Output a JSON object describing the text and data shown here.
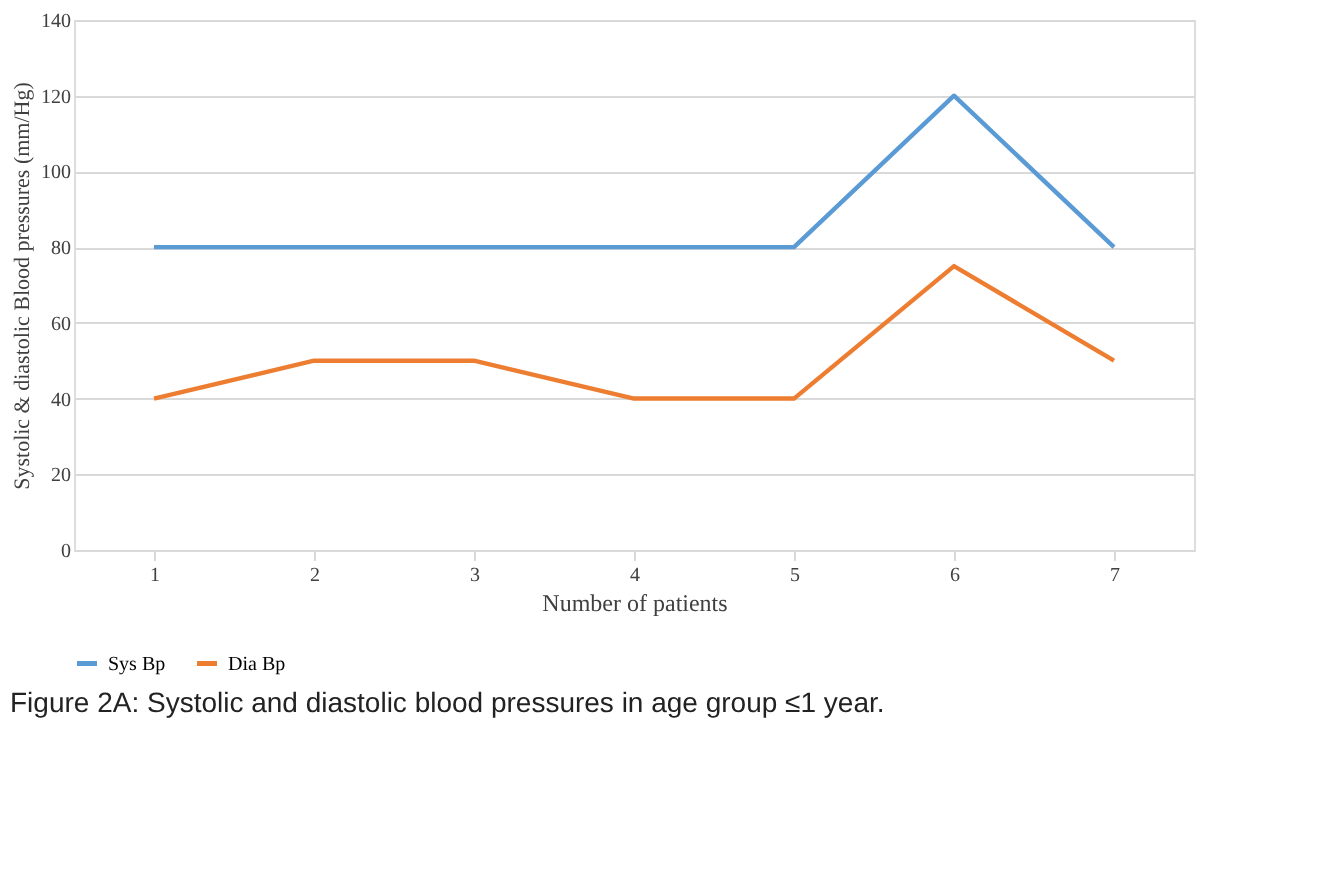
{
  "chart_data": {
    "type": "line",
    "xlabel": "Number of patients",
    "ylabel": "Systolic & diastolic Blood pressures (mm/Hg)",
    "categories": [
      "1",
      "2",
      "3",
      "4",
      "5",
      "6",
      "7"
    ],
    "series": [
      {
        "name": "Sys Bp",
        "color": "#5b9bd5",
        "values": [
          80,
          80,
          80,
          80,
          80,
          120,
          80
        ]
      },
      {
        "name": "Dia Bp",
        "color": "#ed7d31",
        "values": [
          40,
          50,
          50,
          40,
          40,
          75,
          50
        ]
      }
    ],
    "ylim": [
      0,
      140
    ],
    "yticks": [
      0,
      20,
      40,
      60,
      80,
      100,
      120,
      140
    ],
    "grid": "y",
    "legend": "bottom",
    "marker": "none",
    "line_style": "solid",
    "annotations": [
      "Figure 2A: Systolic and diastolic blood pressures in age group ≤1 year."
    ]
  }
}
